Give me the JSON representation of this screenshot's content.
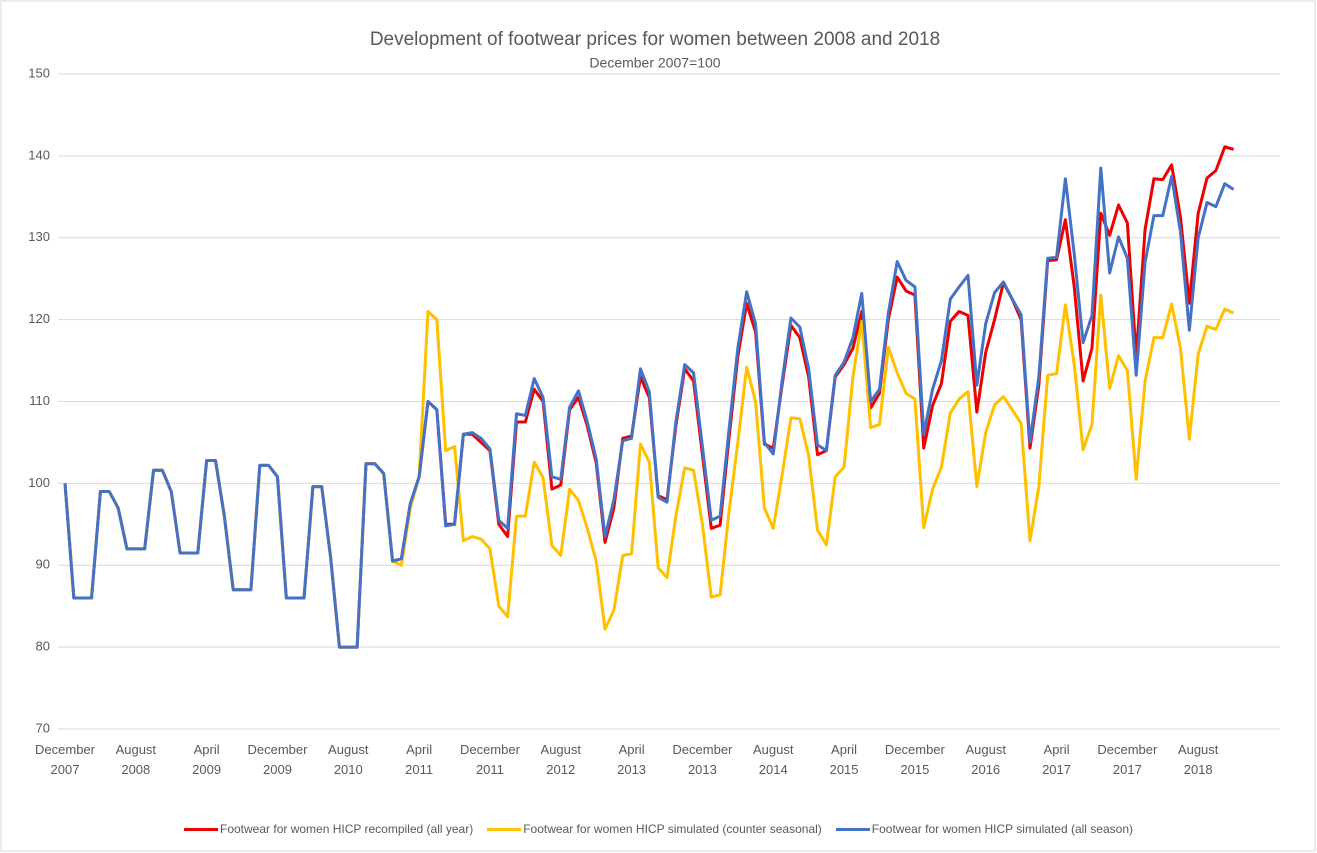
{
  "chart_data": {
    "type": "line",
    "title": "Development of footwear prices for women between 2008 and 2018",
    "subtitle": "December 2007=100",
    "categories": [
      "December 2007",
      null,
      null,
      null,
      null,
      null,
      null,
      null,
      "August 2008",
      null,
      null,
      null,
      null,
      null,
      null,
      null,
      "April 2009",
      null,
      null,
      null,
      null,
      null,
      null,
      null,
      "December 2009",
      null,
      null,
      null,
      null,
      null,
      null,
      null,
      "August 2010",
      null,
      null,
      null,
      null,
      null,
      null,
      null,
      "April 2011",
      null,
      null,
      null,
      null,
      null,
      null,
      null,
      "December 2011",
      null,
      null,
      null,
      null,
      null,
      null,
      null,
      "August 2012",
      null,
      null,
      null,
      null,
      null,
      null,
      null,
      "April 2013",
      null,
      null,
      null,
      null,
      null,
      null,
      null,
      "December 2013",
      null,
      null,
      null,
      null,
      null,
      null,
      null,
      "August 2014",
      null,
      null,
      null,
      null,
      null,
      null,
      null,
      "April 2015",
      null,
      null,
      null,
      null,
      null,
      null,
      null,
      "December 2015",
      null,
      null,
      null,
      null,
      null,
      null,
      null,
      "August 2016",
      null,
      null,
      null,
      null,
      null,
      null,
      null,
      "April 2017",
      null,
      null,
      null,
      null,
      null,
      null,
      null,
      "December 2017",
      null,
      null,
      null,
      null,
      null,
      null,
      null,
      "August 2018",
      null,
      null,
      null,
      null
    ],
    "series": [
      {
        "name": "Footwear for women HICP recompiled (all year)",
        "color": "#ee0000",
        "values": [
          100,
          86,
          86,
          86,
          99,
          99,
          97,
          92,
          92,
          92,
          101.6,
          101.6,
          99,
          91.5,
          91.5,
          91.5,
          102.8,
          102.8,
          96,
          87,
          87,
          87,
          102.2,
          102.2,
          100.8,
          86,
          86,
          86,
          99.6,
          99.6,
          91,
          80,
          80,
          80,
          102.4,
          102.4,
          101.2,
          90.5,
          90.8,
          97.5,
          100.8,
          110,
          109,
          95,
          95,
          106,
          106,
          105,
          104,
          95,
          93.5,
          107.5,
          107.5,
          111.5,
          110,
          99.3,
          99.8,
          109,
          110.5,
          107,
          102.5,
          92.8,
          97,
          105.5,
          105.8,
          113,
          110.5,
          98.5,
          98,
          107,
          114,
          112.5,
          103.5,
          94.5,
          94.9,
          105.5,
          115.5,
          122,
          118.5,
          104.8,
          104.3,
          112,
          119.3,
          117.8,
          113,
          103.5,
          104,
          113,
          114.5,
          116.5,
          121,
          109.2,
          111,
          120,
          125.2,
          123.5,
          123,
          104.3,
          109.5,
          112.2,
          119.8,
          121,
          120.5,
          108.7,
          116,
          120,
          124.5,
          122.5,
          120,
          104.3,
          112,
          127.2,
          127.3,
          132.2,
          124,
          112.5,
          116.5,
          133,
          130.3,
          134,
          131.8,
          115.5,
          131,
          137.2,
          137.1,
          138.9,
          132.5,
          122,
          133,
          137.3,
          138.2,
          141.1,
          140.8
        ]
      },
      {
        "name": "Footwear for women HICP simulated (counter seasonal)",
        "color": "#ffc000",
        "values": [
          100,
          86,
          86,
          86,
          99,
          99,
          97,
          92,
          92,
          92,
          101.6,
          101.6,
          99,
          91.5,
          91.5,
          91.5,
          102.8,
          102.8,
          96,
          87,
          87,
          87,
          102.2,
          102.2,
          100.8,
          86,
          86,
          86,
          99.6,
          99.6,
          91,
          80,
          80,
          80,
          102.4,
          102.4,
          101.2,
          90.5,
          90,
          97,
          100.8,
          121,
          120,
          104,
          104.5,
          93,
          93.5,
          93.2,
          92,
          85,
          83.7,
          96,
          96,
          102.6,
          100.7,
          92.4,
          91.2,
          99.3,
          97.9,
          94.5,
          90.5,
          82.2,
          84.5,
          91.2,
          91.4,
          104.8,
          102.6,
          89.7,
          88.5,
          96,
          101.9,
          101.6,
          95,
          86.1,
          86.4,
          96.5,
          105,
          114.2,
          110,
          97,
          94.5,
          101,
          108,
          107.9,
          103.4,
          94.3,
          92.5,
          100.8,
          102,
          113,
          119.8,
          106.8,
          107.2,
          116.6,
          113.5,
          111,
          110.3,
          94.6,
          99.3,
          102,
          108.6,
          110.3,
          111.2,
          99.6,
          106.2,
          109.6,
          110.6,
          109,
          107.3,
          93,
          99.6,
          113.2,
          113.4,
          121.8,
          114.5,
          104.1,
          107.2,
          123,
          111.6,
          115.6,
          113.8,
          100.5,
          112.5,
          117.8,
          117.8,
          121.9,
          116.5,
          105.4,
          115.8,
          119.2,
          118.8,
          121.3,
          120.8
        ]
      },
      {
        "name": "Footwear for women HICP simulated (all season)",
        "color": "#4472c4",
        "values": [
          100,
          86,
          86,
          86,
          99,
          99,
          97,
          92,
          92,
          92,
          101.6,
          101.6,
          99,
          91.5,
          91.5,
          91.5,
          102.8,
          102.8,
          96,
          87,
          87,
          87,
          102.2,
          102.2,
          100.8,
          86,
          86,
          86,
          99.6,
          99.6,
          91,
          80,
          80,
          80,
          102.4,
          102.4,
          101.2,
          90.5,
          90.8,
          97.5,
          100.8,
          110,
          109,
          94.8,
          95,
          106,
          106.2,
          105.5,
          104.2,
          95.5,
          94.5,
          108.5,
          108.3,
          112.8,
          110.5,
          100.8,
          100.5,
          109.3,
          111.3,
          107.5,
          103,
          93.5,
          98,
          105.2,
          105.5,
          114,
          111.2,
          98.3,
          97.7,
          107.5,
          114.5,
          113.5,
          104.5,
          95.5,
          96,
          106.5,
          116.5,
          123.4,
          119.5,
          105,
          103.6,
          112.5,
          120.2,
          119.1,
          114,
          104.7,
          104,
          113.2,
          114.8,
          117.8,
          123.2,
          110,
          111.5,
          120.8,
          127.1,
          124.8,
          124,
          106,
          111.5,
          115,
          122.5,
          124,
          125.4,
          112,
          119.5,
          123.3,
          124.6,
          122.5,
          120.6,
          105,
          113,
          127.5,
          127.6,
          137.2,
          128,
          117.2,
          120.5,
          138.5,
          125.7,
          130.1,
          127.5,
          113.2,
          127,
          132.7,
          132.7,
          137.5,
          130.7,
          118.7,
          130,
          134.3,
          133.8,
          136.6,
          135.9
        ]
      }
    ],
    "ylim": [
      70,
      150
    ],
    "yticks": [
      70,
      80,
      90,
      100,
      110,
      120,
      130,
      140,
      150
    ],
    "grid": true,
    "legend": "bottom"
  }
}
